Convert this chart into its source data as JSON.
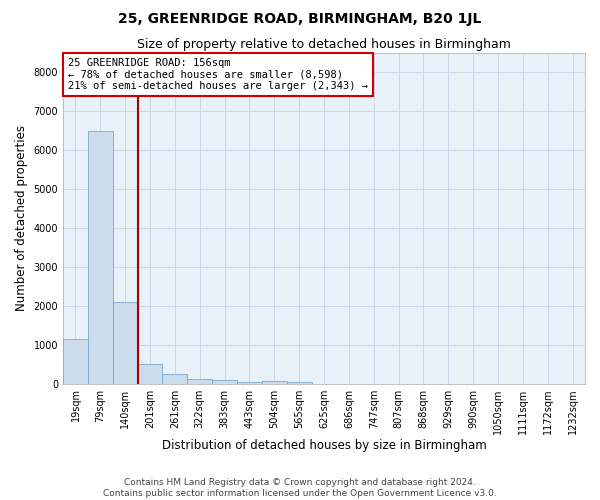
{
  "title": "25, GREENRIDGE ROAD, BIRMINGHAM, B20 1JL",
  "subtitle": "Size of property relative to detached houses in Birmingham",
  "xlabel": "Distribution of detached houses by size in Birmingham",
  "ylabel": "Number of detached properties",
  "footer_line1": "Contains HM Land Registry data © Crown copyright and database right 2024.",
  "footer_line2": "Contains public sector information licensed under the Open Government Licence v3.0.",
  "categories": [
    "19sqm",
    "79sqm",
    "140sqm",
    "201sqm",
    "261sqm",
    "322sqm",
    "383sqm",
    "443sqm",
    "504sqm",
    "565sqm",
    "625sqm",
    "686sqm",
    "747sqm",
    "807sqm",
    "868sqm",
    "929sqm",
    "990sqm",
    "1050sqm",
    "1111sqm",
    "1172sqm",
    "1232sqm"
  ],
  "values": [
    1150,
    6500,
    2100,
    500,
    250,
    120,
    80,
    50,
    70,
    50,
    0,
    0,
    0,
    0,
    0,
    0,
    0,
    0,
    0,
    0,
    0
  ],
  "bar_color": "#cddcec",
  "bar_edge_color": "#7ba8cc",
  "vline_color": "#aa0000",
  "vline_x_idx": 2,
  "annotation_text": "25 GREENRIDGE ROAD: 156sqm\n← 78% of detached houses are smaller (8,598)\n21% of semi-detached houses are larger (2,343) →",
  "annotation_box_facecolor": "#ffffff",
  "annotation_box_edgecolor": "#cc0000",
  "ylim": [
    0,
    8500
  ],
  "yticks": [
    0,
    1000,
    2000,
    3000,
    4000,
    5000,
    6000,
    7000,
    8000
  ],
  "background_color": "#ffffff",
  "plot_bg_color": "#e8f0f8",
  "grid_color": "#c8d8e8",
  "title_fontsize": 10,
  "subtitle_fontsize": 9,
  "xlabel_fontsize": 8.5,
  "ylabel_fontsize": 8.5,
  "tick_fontsize": 7,
  "annotation_fontsize": 7.5,
  "footer_fontsize": 6.5
}
